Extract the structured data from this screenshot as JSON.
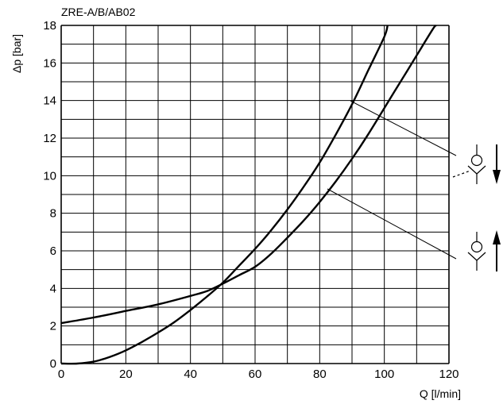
{
  "chart_data": {
    "type": "line",
    "title": "ZRE-A/B/AB02",
    "xlabel": "Q [l/min]",
    "ylabel": "Δp [bar]",
    "xlim": [
      0,
      120
    ],
    "ylim": [
      0,
      18
    ],
    "x_ticks": [
      "0",
      "20",
      "40",
      "60",
      "80",
      "100",
      "120"
    ],
    "y_ticks": [
      "0",
      "2",
      "4",
      "6",
      "8",
      "10",
      "12",
      "14",
      "16",
      "18"
    ],
    "grid": true,
    "series": [
      {
        "x": [
          0,
          5,
          10,
          15,
          20,
          25,
          30,
          35,
          40,
          45,
          50,
          55,
          60,
          65,
          70,
          75,
          80,
          85,
          90,
          95,
          100,
          101
        ],
        "y": [
          0,
          0,
          0.1,
          0.35,
          0.7,
          1.15,
          1.65,
          2.2,
          2.85,
          3.55,
          4.3,
          5.2,
          6.1,
          7.1,
          8.2,
          9.4,
          10.7,
          12.2,
          13.8,
          15.6,
          17.4,
          18
        ]
      },
      {
        "x": [
          0,
          10,
          20,
          30,
          40,
          45,
          50,
          55,
          60,
          65,
          70,
          75,
          80,
          85,
          90,
          95,
          100,
          105,
          110,
          115,
          116
        ],
        "y": [
          2.15,
          2.45,
          2.8,
          3.15,
          3.6,
          3.85,
          4.25,
          4.7,
          5.15,
          5.85,
          6.7,
          7.6,
          8.6,
          9.7,
          10.9,
          12.2,
          13.6,
          15.0,
          16.4,
          17.8,
          18
        ]
      }
    ],
    "legend_symbols": [
      {
        "icon": "check-valve-pilot-icon",
        "arrow": "down-arrow"
      },
      {
        "icon": "check-valve-icon",
        "arrow": "up-arrow"
      }
    ]
  }
}
